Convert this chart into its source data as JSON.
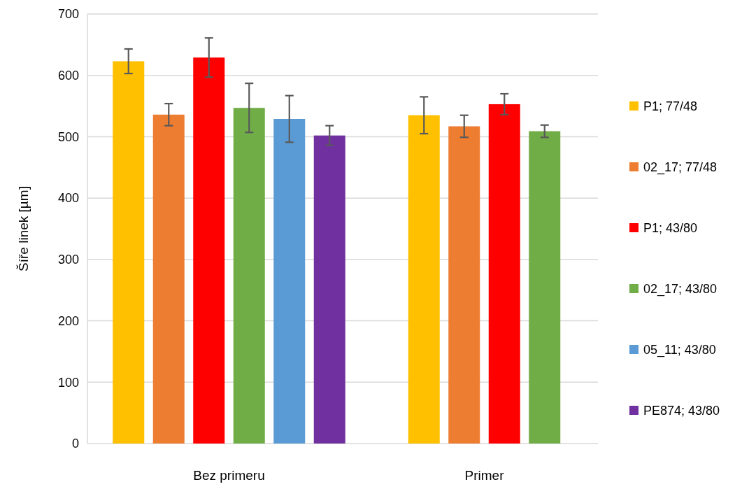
{
  "chart_data": {
    "type": "bar",
    "ylabel": "Šíře linek [µm]",
    "categories": [
      "Bez primeru",
      "Primer"
    ],
    "series": [
      {
        "name": "P1; 77/48",
        "color": "#ffc000",
        "values": [
          623,
          535
        ],
        "errors": [
          20,
          30
        ]
      },
      {
        "name": "02_17; 77/48",
        "color": "#ed7d31",
        "values": [
          536,
          517
        ],
        "errors": [
          18,
          18
        ]
      },
      {
        "name": "P1; 43/80",
        "color": "#ff0000",
        "values": [
          629,
          553
        ],
        "errors": [
          32,
          17
        ]
      },
      {
        "name": "02_17; 43/80",
        "color": "#70ad47",
        "values": [
          547,
          509
        ],
        "errors": [
          40,
          10
        ]
      },
      {
        "name": "05_11; 43/80",
        "color": "#5b9bd5",
        "values": [
          529,
          null
        ],
        "errors": [
          38,
          null
        ]
      },
      {
        "name": "PE874; 43/80",
        "color": "#7030a0",
        "values": [
          502,
          null
        ],
        "errors": [
          16,
          null
        ]
      }
    ],
    "ylim": [
      0,
      700
    ],
    "yticks": [
      0,
      100,
      200,
      300,
      400,
      500,
      600,
      700
    ],
    "grid": "y",
    "legend": "right"
  }
}
